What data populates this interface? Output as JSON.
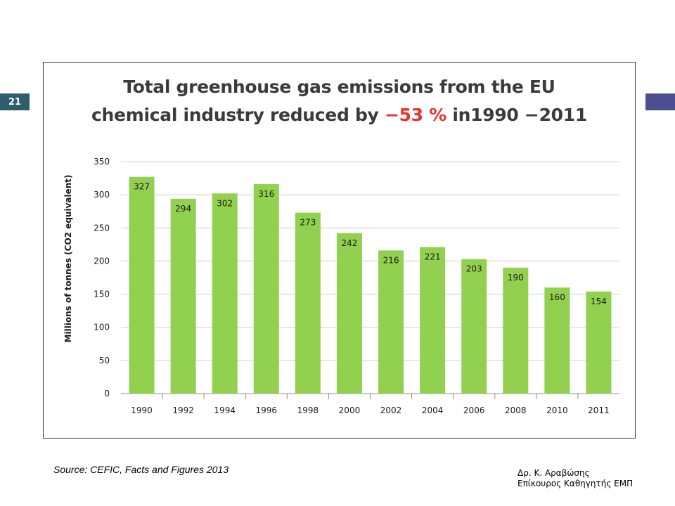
{
  "slide": {
    "number": "21",
    "source": "Source: CEFIC, Facts and Figures 2013",
    "author_line1": "Δρ. Κ. Αραβώσης",
    "author_line2": "Επίκουρος Καθηγητής ΕΜΠ",
    "colors": {
      "slide_number_bg": "#2e5e6e",
      "right_marker": "#4b4f8f"
    }
  },
  "chart_data": {
    "type": "bar",
    "title_line1": "Total greenhouse gas emissions from the EU",
    "title_line2_prefix": "chemical industry reduced by ",
    "title_line2_highlight": "−53 %",
    "title_line2_suffix": " in1990 −2011",
    "ylabel": "Millions of tonnes (CO2 equivalent)",
    "xlabel": "",
    "categories": [
      "1990",
      "1992",
      "1994",
      "1996",
      "1998",
      "2000",
      "2002",
      "2004",
      "2006",
      "2008",
      "2010",
      "2011"
    ],
    "values": [
      327,
      294,
      302,
      316,
      273,
      242,
      216,
      221,
      203,
      190,
      160,
      154
    ],
    "ylim": [
      0,
      350
    ],
    "yticks": [
      0,
      50,
      100,
      150,
      200,
      250,
      300,
      350
    ],
    "grid": true,
    "bar_color": "#92d050",
    "highlight_color": "#e8312f"
  }
}
